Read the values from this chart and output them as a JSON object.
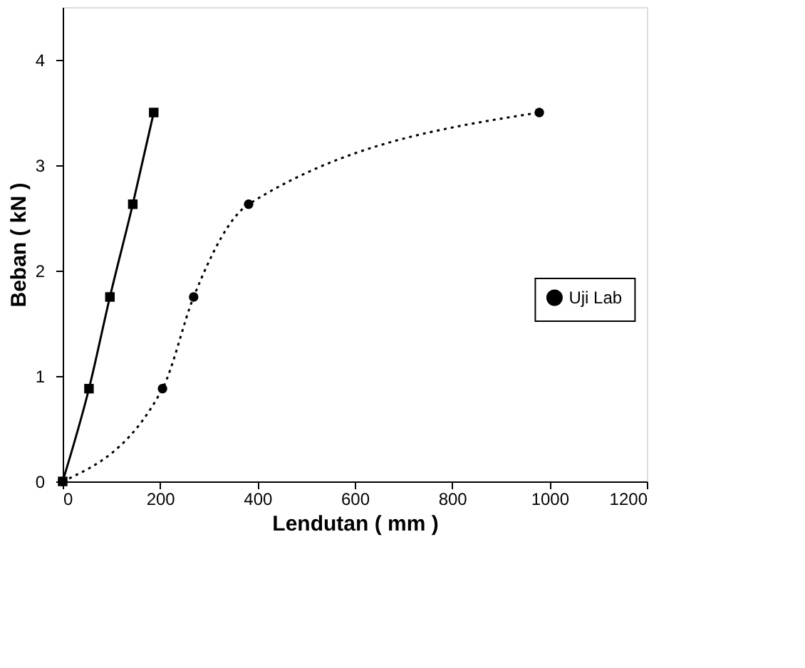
{
  "chart_data": {
    "type": "line",
    "xlabel": "Lendutan ( mm )",
    "ylabel": "Beban ( kN )",
    "xlim": [
      0,
      1200
    ],
    "xticks": [
      0,
      200,
      400,
      600,
      800,
      1000,
      1200
    ],
    "ylim": [
      0,
      4.5
    ],
    "yticks": [
      0,
      1,
      2,
      3,
      4
    ],
    "grid": false,
    "legend": "right",
    "series": [
      {
        "name": "Uji Lab",
        "color": "#000000",
        "marker": "circle",
        "line_style": "dotted",
        "x": [
          0,
          205,
          269,
          382,
          979
        ],
        "values": [
          0,
          0.88,
          1.75,
          2.63,
          3.5
        ]
      },
      {
        "color": "#000000",
        "marker": "square",
        "line_style": "solid",
        "x": [
          0,
          54,
          97,
          144,
          187
        ],
        "values": [
          0,
          0.88,
          1.75,
          2.63,
          3.5
        ]
      }
    ]
  }
}
